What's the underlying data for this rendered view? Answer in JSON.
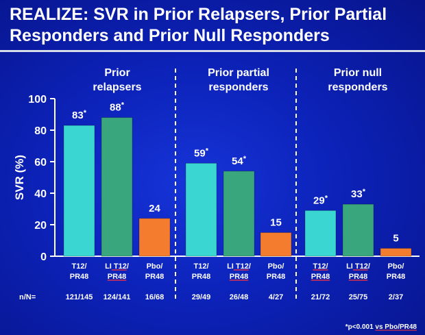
{
  "title": "REALIZE: SVR in Prior Relapsers, Prior Partial Responders and Prior Null Responders",
  "footnote": "*p<0.001 vs Pbo/PR48",
  "nn_label": "n/N=",
  "colors": {
    "T12/PR48": "#3ad6d2",
    "LI T12/PR48": "#3aa67e",
    "Pbo/PR48": "#f47c2e",
    "axis": "#ffffff",
    "underline": "#e0304a"
  },
  "chart_data": {
    "type": "bar",
    "ylabel": "SVR (%)",
    "ylim": [
      0,
      100
    ],
    "yticks": [
      0,
      20,
      40,
      60,
      80,
      100
    ],
    "groups": [
      {
        "label_lines": [
          "Prior",
          "relapsers"
        ],
        "bars": [
          {
            "series": "T12/PR48",
            "label_lines": [
              "T12/",
              "PR48"
            ],
            "value": 83,
            "value_label": "83",
            "significant": true,
            "nn": "121/145",
            "underline": []
          },
          {
            "series": "LI T12/PR48",
            "label_lines": [
              "LI T12/",
              "PR48"
            ],
            "value": 88,
            "value_label": "88",
            "significant": true,
            "nn": "124/141",
            "underline": [
              "T12/",
              "PR48"
            ]
          },
          {
            "series": "Pbo/PR48",
            "label_lines": [
              "Pbo/",
              "PR48"
            ],
            "value": 24,
            "value_label": "24",
            "significant": false,
            "nn": "16/68",
            "underline": []
          }
        ]
      },
      {
        "label_lines": [
          "Prior partial",
          "responders"
        ],
        "bars": [
          {
            "series": "T12/PR48",
            "label_lines": [
              "T12/",
              "PR48"
            ],
            "value": 59,
            "value_label": "59",
            "significant": true,
            "nn": "29/49",
            "underline": []
          },
          {
            "series": "LI T12/PR48",
            "label_lines": [
              "LI T12/",
              "PR48"
            ],
            "value": 54,
            "value_label": "54",
            "significant": true,
            "nn": "26/48",
            "underline": [
              "T12/",
              "PR48"
            ]
          },
          {
            "series": "Pbo/PR48",
            "label_lines": [
              "Pbo/",
              "PR48"
            ],
            "value": 15,
            "value_label": "15",
            "significant": false,
            "nn": "4/27",
            "underline": []
          }
        ]
      },
      {
        "label_lines": [
          "Prior null",
          "responders"
        ],
        "bars": [
          {
            "series": "T12/PR48",
            "label_lines": [
              "T12/",
              "PR48"
            ],
            "value": 29,
            "value_label": "29",
            "significant": true,
            "nn": "21/72",
            "underline": [
              "T12/",
              "PR48"
            ]
          },
          {
            "series": "LI T12/PR48",
            "label_lines": [
              "LI T12/",
              "PR48"
            ],
            "value": 33,
            "value_label": "33",
            "significant": true,
            "nn": "25/75",
            "underline": [
              "T12/",
              "PR48"
            ]
          },
          {
            "series": "Pbo/PR48",
            "label_lines": [
              "Pbo/",
              "PR48"
            ],
            "value": 5,
            "value_label": "5",
            "significant": false,
            "nn": "2/37",
            "underline": []
          }
        ]
      }
    ],
    "grid": false,
    "legend": "none"
  }
}
